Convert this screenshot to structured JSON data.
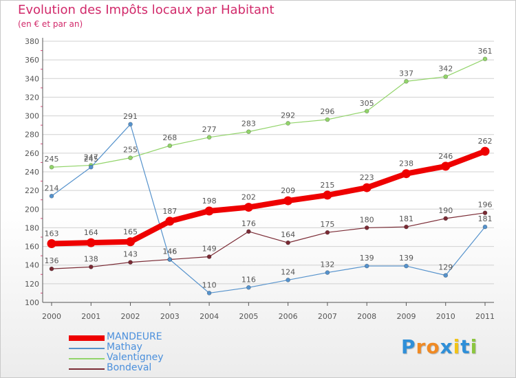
{
  "header": {
    "title": "Evolution des Impôts locaux par Habitant",
    "subtitle": "(en € et par an)"
  },
  "logo": {
    "text": "Proxiti",
    "letters": [
      "P",
      "r",
      "o",
      "x",
      "i",
      "t",
      "i"
    ],
    "letter_colors": [
      "#2f8fd8",
      "#f08a24",
      "#f08a24",
      "#2f8fd8",
      "#f2c418",
      "#2f8fd8",
      "#8cc63f"
    ]
  },
  "colors": {
    "title": "#d1296a",
    "axis": "#555555",
    "grid": "#d0d0d0",
    "legend_text": "#4a8fdc",
    "tick_minor": "#e0457b"
  },
  "chart_data": {
    "type": "line",
    "title": "Evolution des Impôts locaux par Habitant",
    "subtitle": "(en € et par an)",
    "xlabel": "",
    "ylabel": "",
    "x": [
      "2000",
      "2001",
      "2002",
      "2003",
      "2004",
      "2005",
      "2006",
      "2007",
      "2008",
      "2009",
      "2010",
      "2011"
    ],
    "ylim": [
      100,
      380
    ],
    "yticks": [
      100,
      120,
      140,
      160,
      180,
      200,
      220,
      240,
      260,
      280,
      300,
      320,
      340,
      360,
      380
    ],
    "grid": "horizontal",
    "legend_position": "bottom-left",
    "series": [
      {
        "name": "MANDEURE",
        "color": "#ee0000",
        "width": 8,
        "values": [
          163,
          164,
          165,
          187,
          198,
          202,
          209,
          215,
          223,
          238,
          246,
          262
        ]
      },
      {
        "name": "Mathay",
        "color": "#5592cc",
        "width": 1.2,
        "values": [
          214,
          245,
          291,
          146,
          110,
          116,
          124,
          132,
          139,
          139,
          129,
          181
        ]
      },
      {
        "name": "Valentigney",
        "color": "#92d46a",
        "width": 1.2,
        "values": [
          245,
          247,
          255,
          268,
          277,
          283,
          292,
          296,
          305,
          337,
          342,
          361
        ]
      },
      {
        "name": "Bondeval",
        "color": "#7a2a34",
        "width": 1.2,
        "values": [
          136,
          138,
          143,
          146,
          149,
          176,
          164,
          175,
          180,
          181,
          190,
          196
        ]
      }
    ]
  }
}
